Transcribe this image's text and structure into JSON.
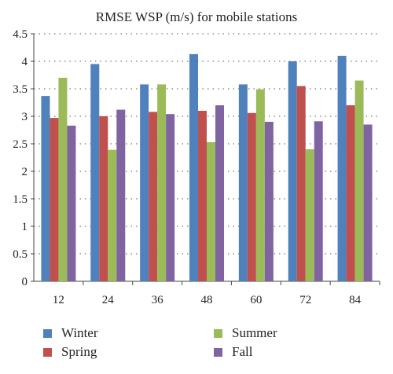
{
  "chart_data": {
    "type": "bar",
    "title": "RMSE WSP (m/s) for mobile stations",
    "xlabel": "",
    "ylabel": "",
    "categories": [
      "12",
      "24",
      "36",
      "48",
      "60",
      "72",
      "84"
    ],
    "ylim": [
      0,
      4.5
    ],
    "yticks": [
      "0",
      "0.5",
      "1",
      "1.5",
      "2",
      "2.5",
      "3",
      "3.5",
      "4",
      "4.5"
    ],
    "grid": "horizontal dotted",
    "legend_position": "bottom",
    "series": [
      {
        "name": "Winter",
        "color": "#4f81bd",
        "values": [
          3.37,
          3.95,
          3.58,
          4.13,
          3.58,
          4.0,
          4.1
        ]
      },
      {
        "name": "Spring",
        "color": "#c0504d",
        "values": [
          2.97,
          3.0,
          3.08,
          3.1,
          3.06,
          3.55,
          3.2
        ]
      },
      {
        "name": "Summer",
        "color": "#9bbb59",
        "values": [
          3.7,
          2.39,
          3.58,
          2.53,
          3.49,
          2.4,
          3.65
        ]
      },
      {
        "name": "Fall",
        "color": "#8064a2",
        "values": [
          2.83,
          3.12,
          3.04,
          3.2,
          2.9,
          2.91,
          2.85
        ]
      }
    ]
  }
}
